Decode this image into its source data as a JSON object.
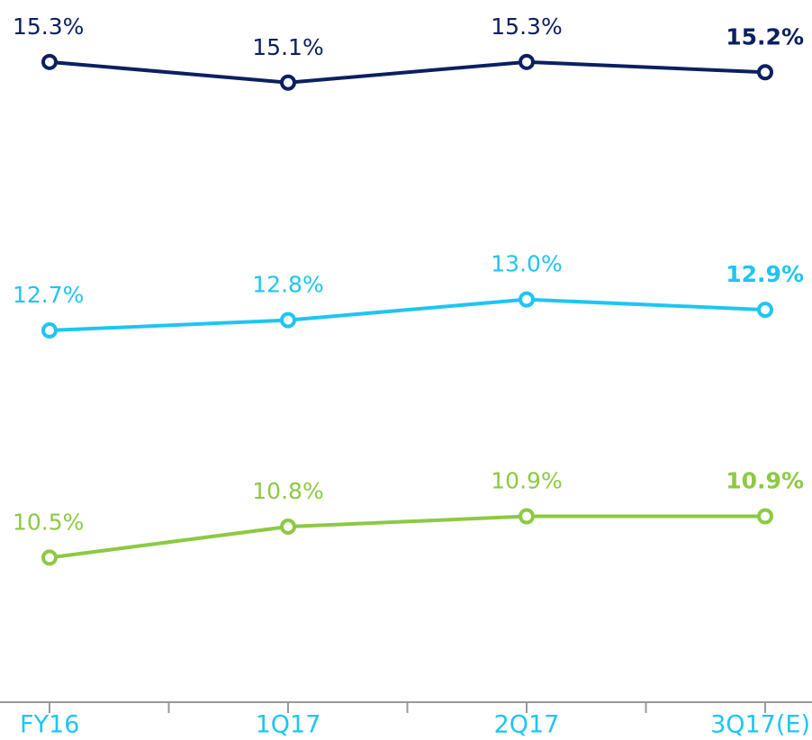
{
  "chart_data": {
    "type": "line",
    "categories": [
      "FY16",
      "1Q17",
      "2Q17",
      "3Q17(E)"
    ],
    "ylim": [
      9.1,
      15.9
    ],
    "series": [
      {
        "color": "#0b2060",
        "values": [
          15.3,
          15.1,
          15.3,
          15.2
        ],
        "value_labels": [
          "15.3%",
          "15.1%",
          "15.3%",
          "15.2%"
        ]
      },
      {
        "color": "#1ec5f3",
        "values": [
          12.7,
          12.8,
          13.0,
          12.9
        ],
        "value_labels": [
          "12.7%",
          "12.8%",
          "13.0%",
          "12.9%"
        ]
      },
      {
        "color": "#8dc944",
        "values": [
          10.5,
          10.8,
          10.9,
          10.9
        ],
        "value_labels": [
          "10.5%",
          "10.8%",
          "10.9%",
          "10.9%"
        ]
      }
    ]
  }
}
